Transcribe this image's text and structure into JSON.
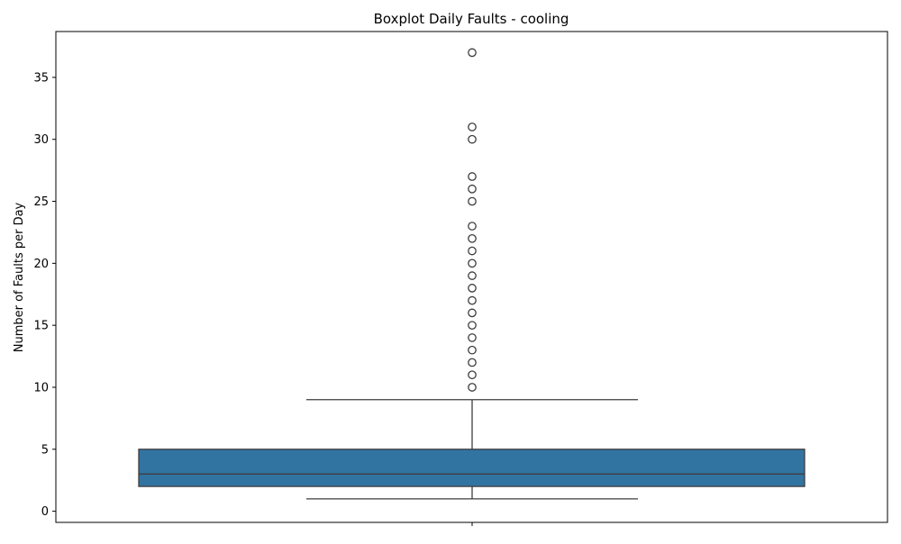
{
  "chart_data": {
    "type": "box",
    "title": "Boxplot Daily Faults - cooling",
    "xlabel": "",
    "ylabel": "Number of Faults per Day",
    "ylim": [
      -0.9,
      38.7
    ],
    "yticks": [
      0,
      5,
      10,
      15,
      20,
      25,
      30,
      35
    ],
    "grid": false,
    "box": {
      "whisker_low": 1,
      "q1": 2,
      "median": 3,
      "q3": 5,
      "whisker_high": 9,
      "fill_color": "#3274a1",
      "edge_color": "#3d3d3d"
    },
    "outliers": [
      10,
      11,
      12,
      13,
      14,
      15,
      16,
      17,
      18,
      19,
      20,
      21,
      22,
      23,
      25,
      26,
      27,
      30,
      31,
      37
    ]
  }
}
